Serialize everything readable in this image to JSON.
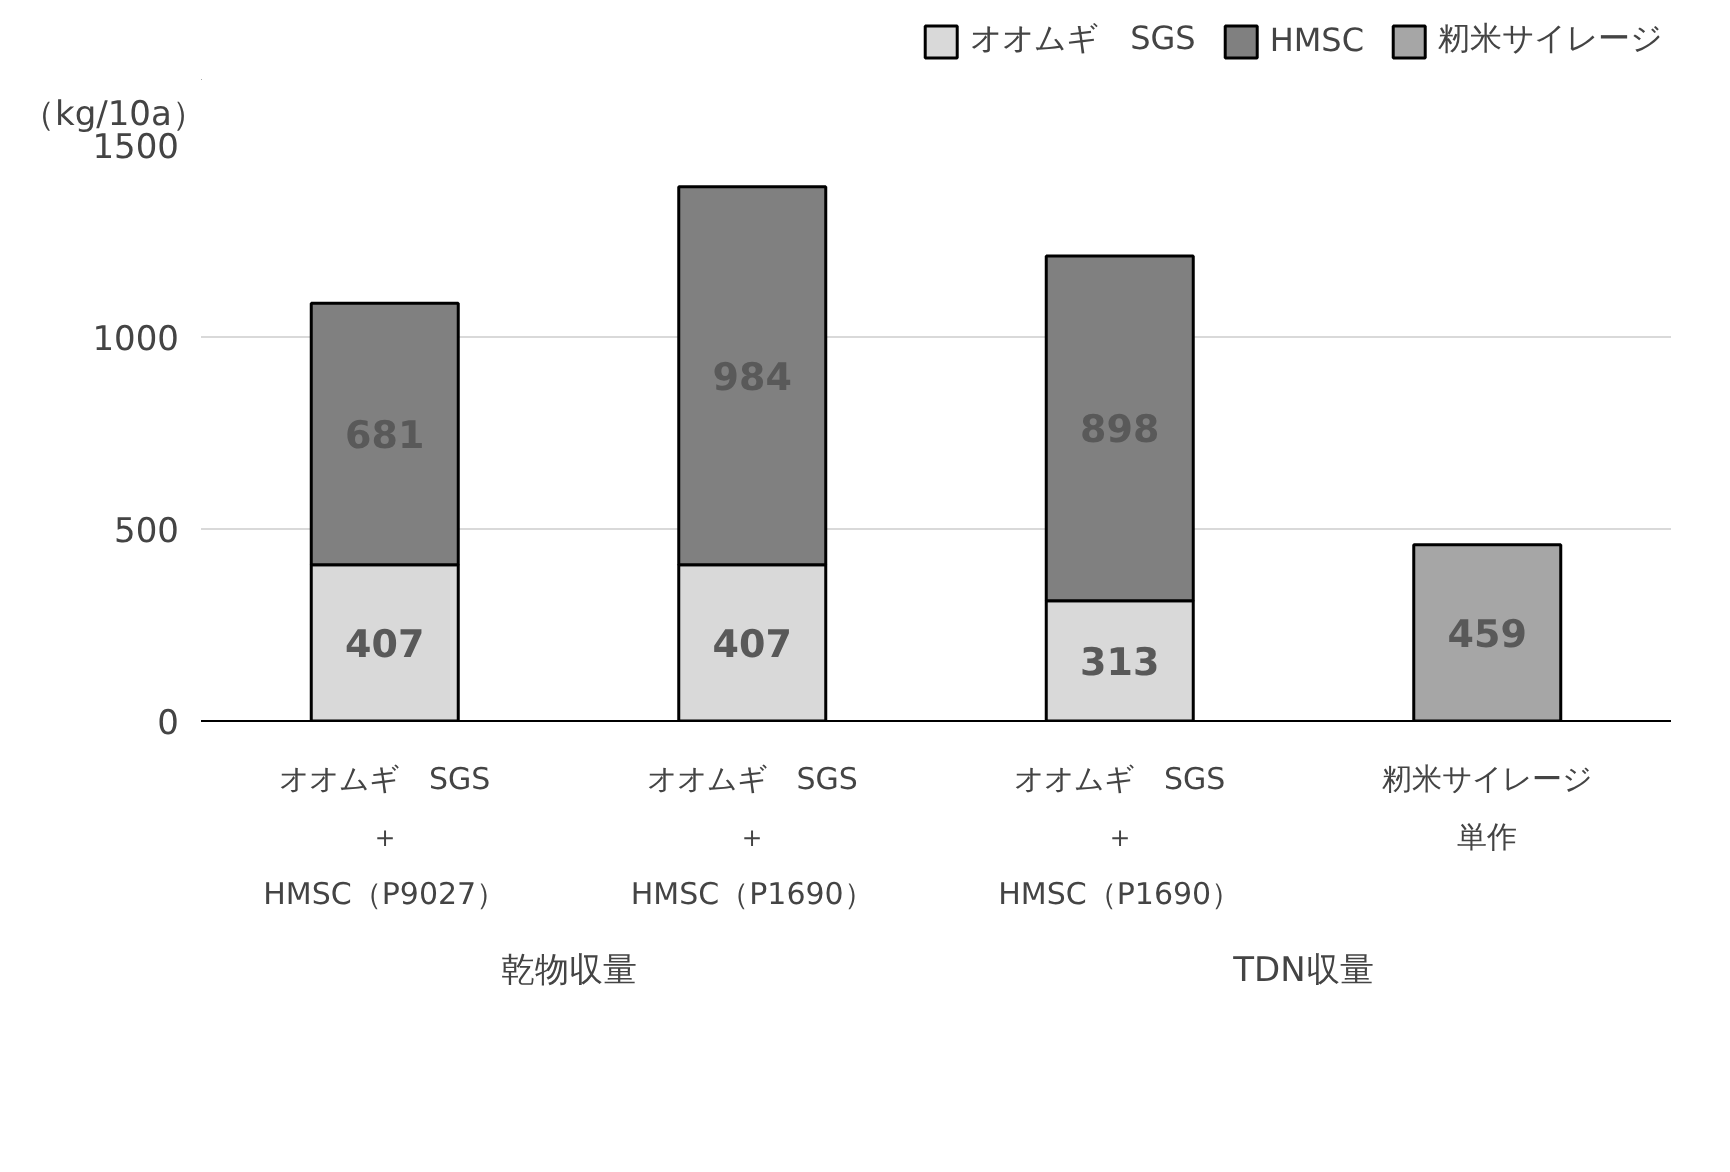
{
  "chart_data": {
    "type": "bar",
    "stacked": true,
    "categories": [
      "オオムギ゙SGS\n＋\nHMSC（P9027）",
      "オオムギ゙SGS\n＋\nHMSC（P1690）",
      "オオムギ゙SGS\n＋\nHMSC（P1690）",
      "籾米サイレージ単作"
    ],
    "series": [
      {
        "name": "オオムギ゙SGS",
        "color": "#d9d9d9",
        "values": [
          407,
          407,
          313,
          null
        ]
      },
      {
        "name": "HMSC",
        "color": "#808080",
        "values": [
          681,
          984,
          898,
          null
        ]
      },
      {
        "name": "籾米サイレージ",
        "color": "#a6a6a6",
        "values": [
          null,
          null,
          null,
          459
        ]
      }
    ],
    "ylabel": "（kg/10a）",
    "ylim": [
      0,
      1500
    ],
    "yticks": [
      0,
      500,
      1000,
      1500
    ],
    "annotations": [
      "乾物収量",
      "TDN収量"
    ],
    "data_labels": true,
    "grid": "y",
    "legend": "top right"
  }
}
